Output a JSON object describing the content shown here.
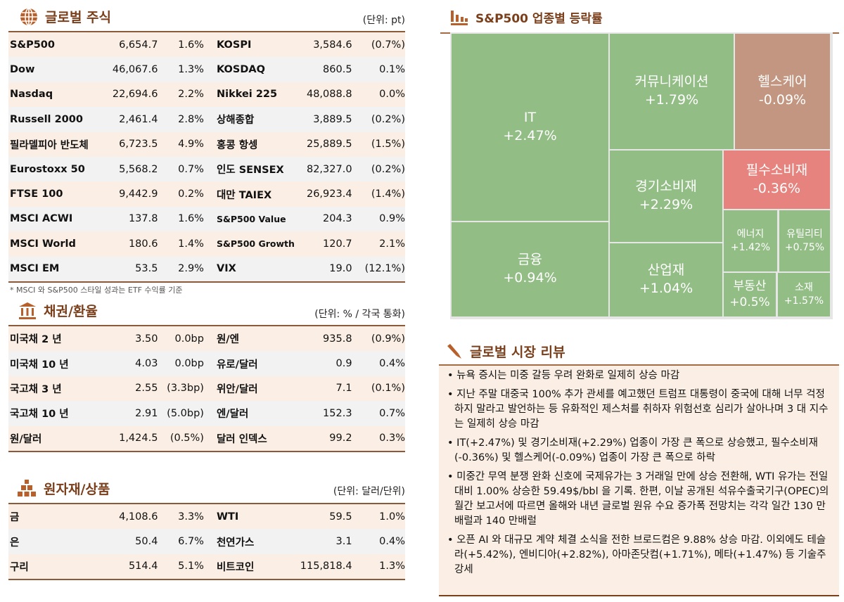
{
  "global_stocks": {
    "title": "글로벌 주식",
    "unit": "(단위: pt)",
    "icon": "globe-icon",
    "rows": [
      {
        "name1": "S&P500",
        "value1": "6,654.7",
        "pct1": "1.6%",
        "name2": "KOSPI",
        "value2": "3,584.6",
        "pct2": "(0.7%)"
      },
      {
        "name1": "Dow",
        "value1": "46,067.6",
        "pct1": "1.3%",
        "name2": "KOSDAQ",
        "value2": "860.5",
        "pct2": "0.1%"
      },
      {
        "name1": "Nasdaq",
        "value1": "22,694.6",
        "pct1": "2.2%",
        "name2": "Nikkei 225",
        "value2": "48,088.8",
        "pct2": "0.0%"
      },
      {
        "name1": "Russell 2000",
        "value1": "2,461.4",
        "pct1": "2.8%",
        "name2": "상해종합",
        "value2": "3,889.5",
        "pct2": "(0.2%)"
      },
      {
        "name1": "필라델피아 반도체",
        "value1": "6,723.5",
        "pct1": "4.9%",
        "name2": "홍콩 항셍",
        "value2": "25,889.5",
        "pct2": "(1.5%)"
      },
      {
        "name1": "Eurostoxx 50",
        "value1": "5,568.2",
        "pct1": "0.7%",
        "name2": "인도 SENSEX",
        "value2": "82,327.0",
        "pct2": "(0.2%)"
      },
      {
        "name1": "FTSE 100",
        "value1": "9,442.9",
        "pct1": "0.2%",
        "name2": "대만 TAIEX",
        "value2": "26,923.4",
        "pct2": "(1.4%)"
      },
      {
        "name1": "MSCI ACWI",
        "value1": "137.8",
        "pct1": "1.6%",
        "name2": "S&P500 Value",
        "value2": "204.3",
        "pct2": "0.9%"
      },
      {
        "name1": "MSCI World",
        "value1": "180.6",
        "pct1": "1.4%",
        "name2": "S&P500 Growth",
        "value2": "120.7",
        "pct2": "2.1%"
      },
      {
        "name1": "MSCI EM",
        "value1": "53.5",
        "pct1": "2.9%",
        "name2": "VIX",
        "value2": "19.0",
        "pct2": "(12.1%)"
      }
    ],
    "note": "* MSCI 와 S&P500 스타일 성과는 ETF 수익률 기준"
  },
  "bonds_fx": {
    "title": "채권/환율",
    "unit": "(단위: % / 각국 통화)",
    "icon": "bank-icon",
    "rows": [
      {
        "name1": "미국채 2 년",
        "value1": "3.50",
        "pct1": "0.0bp",
        "name2": "원/엔",
        "value2": "935.8",
        "pct2": "(0.9%)"
      },
      {
        "name1": "미국채 10 년",
        "value1": "4.03",
        "pct1": "0.0bp",
        "name2": "유로/달러",
        "value2": "0.9",
        "pct2": "0.4%"
      },
      {
        "name1": "국고채 3 년",
        "value1": "2.55",
        "pct1": "(3.3bp)",
        "name2": "위안/달러",
        "value2": "7.1",
        "pct2": "(0.1%)"
      },
      {
        "name1": "국고채 10 년",
        "value1": "2.91",
        "pct1": "(5.0bp)",
        "name2": "엔/달러",
        "value2": "152.3",
        "pct2": "0.7%"
      },
      {
        "name1": "원/달러",
        "value1": "1,424.5",
        "pct1": "(0.5%)",
        "name2": "달러 인덱스",
        "value2": "99.2",
        "pct2": "0.3%"
      }
    ]
  },
  "commodities": {
    "title": "원자재/상품",
    "unit": "(단위: 달러/단위)",
    "icon": "gold-bars-icon",
    "rows": [
      {
        "name1": "금",
        "value1": "4,108.6",
        "pct1": "3.3%",
        "name2": "WTI",
        "value2": "59.5",
        "pct2": "1.0%"
      },
      {
        "name1": "은",
        "value1": "50.4",
        "pct1": "6.7%",
        "name2": "천연가스",
        "value2": "3.1",
        "pct2": "0.4%"
      },
      {
        "name1": "구리",
        "value1": "514.4",
        "pct1": "5.1%",
        "name2": "비트코인",
        "value2": "115,818.4",
        "pct2": "1.3%"
      }
    ]
  },
  "sector": {
    "title": "S&P500 업종별 등락률",
    "icon": "bar-chart-icon",
    "colors": {
      "up": "#92bd85",
      "slight_down": "#c29680",
      "down": "#e6837e"
    },
    "tiles": [
      {
        "name": "IT",
        "value": "+2.47%"
      },
      {
        "name": "금융",
        "value": "+0.94%"
      },
      {
        "name": "커뮤니케이션",
        "value": "+1.79%"
      },
      {
        "name": "헬스케어",
        "value": "-0.09%"
      },
      {
        "name": "경기소비재",
        "value": "+2.29%"
      },
      {
        "name": "산업재",
        "value": "+1.04%"
      },
      {
        "name": "필수소비재",
        "value": "-0.36%"
      },
      {
        "name": "에너지",
        "value": "+1.42%"
      },
      {
        "name": "유틸리티",
        "value": "+0.75%"
      },
      {
        "name": "부동산",
        "value": "+0.5%"
      },
      {
        "name": "소재",
        "value": "+1.57%"
      }
    ]
  },
  "review": {
    "title": "글로벌 시장 리뷰",
    "icon": "pen-icon",
    "items": [
      "• 뉴욕 증시는 미중 갈등 우려 완화로 일제히 상승 마감",
      "• 지난 주말 대중국 100% 추가 관세를 예고했던 트럼프 대통령이 중국에 대해 너무 걱정하지 말라고 발언하는 등 유화적인 제스처를 취하자 위험선호 심리가 살아나며 3 대 지수는 일제히 상승 마감",
      "• IT(+2.47%) 및 경기소비재(+2.29%) 업종이 가장 큰 폭으로 상승했고, 필수소비재(-0.36%) 및 헬스케어(-0.09%) 업종이 가장 큰 폭으로 하락",
      "• 미중간 무역 분쟁 완화 신호에 국제유가는 3 거래일 만에 상승 전환해, WTI 유가는 전일대비 1.00% 상승한 59.49$/bbl 을 기록. 한편, 이날 공개된 석유수출국기구(OPEC)의 월간 보고서에 따르면 올해와 내년 글로벌 원유 수요 증가폭 전망치는 각각 일간 130 만배럴과 140 만배럴",
      "• 오픈 AI 와 대규모 계약 체결 소식을 전한 브로드컴은 9.88% 상승 마감. 이외에도 테슬라(+5.42%), 엔비디아(+2.82%), 아마존닷컴(+1.71%), 메타(+1.47%) 등 기술주 강세"
    ]
  }
}
